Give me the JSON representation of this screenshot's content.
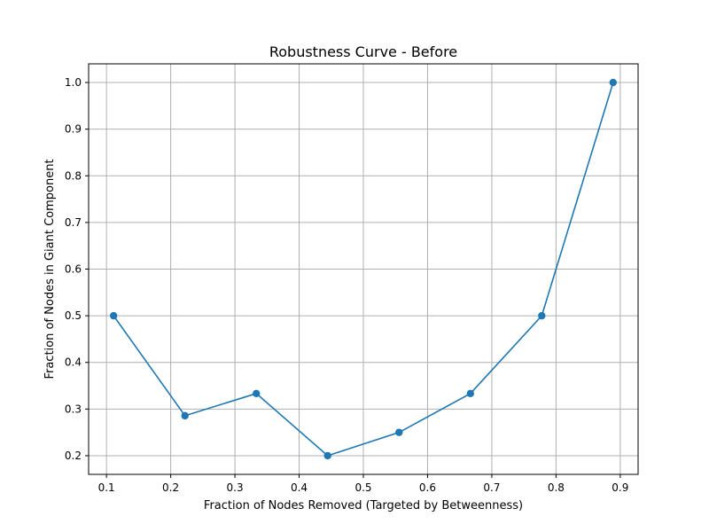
{
  "chart_data": {
    "type": "line",
    "title": "Robustness Curve - Before",
    "xlabel": "Fraction of Nodes Removed (Targeted by Betweenness)",
    "ylabel": "Fraction of Nodes in Giant Component",
    "xlim": [
      0.0722,
      0.9278
    ],
    "ylim": [
      0.16,
      1.04
    ],
    "xticks": [
      0.1,
      0.2,
      0.3,
      0.4,
      0.5,
      0.6,
      0.7,
      0.8,
      0.9
    ],
    "xtick_labels": [
      "0.1",
      "0.2",
      "0.3",
      "0.4",
      "0.5",
      "0.6",
      "0.7",
      "0.8",
      "0.9"
    ],
    "yticks": [
      0.2,
      0.3,
      0.4,
      0.5,
      0.6,
      0.7,
      0.8,
      0.9,
      1.0
    ],
    "ytick_labels": [
      "0.2",
      "0.3",
      "0.4",
      "0.5",
      "0.6",
      "0.7",
      "0.8",
      "0.9",
      "1.0"
    ],
    "grid": true,
    "series": [
      {
        "color": "#1f77b4",
        "marker": "circle",
        "x": [
          0.1111,
          0.2222,
          0.3333,
          0.4444,
          0.5556,
          0.6667,
          0.7778,
          0.8889
        ],
        "y": [
          0.5,
          0.2857,
          0.3333,
          0.2,
          0.25,
          0.3333,
          0.5,
          1.0
        ]
      }
    ]
  }
}
